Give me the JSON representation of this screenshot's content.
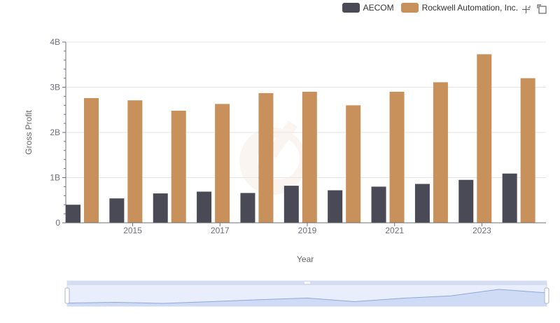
{
  "legend": {
    "aecom": "AECOM",
    "rockwell": "Rockwell Automation, Inc."
  },
  "toolbox": {
    "zoom_icon": "zoom-icon",
    "restore_icon": "restore-icon"
  },
  "colors": {
    "aecom": "#4a4a56",
    "rockwell": "#c8915c",
    "grid": "#e6e6e6",
    "axis": "#6e7079"
  },
  "chart_data": {
    "type": "bar",
    "categories": [
      "2014",
      "2015",
      "2016",
      "2017",
      "2018",
      "2019",
      "2020",
      "2021",
      "2022",
      "2023",
      "2024"
    ],
    "x_tick_labels": [
      "2015",
      "2017",
      "2019",
      "2021",
      "2023"
    ],
    "y_tick_labels": [
      "0",
      "1B",
      "2B",
      "3B",
      "4B"
    ],
    "xlabel": "Year",
    "ylabel": "Gross Profit",
    "ylim": [
      0,
      4000000000
    ],
    "grid": true,
    "legend_position": "top-right",
    "series": [
      {
        "name": "AECOM",
        "values": [
          400000000,
          540000000,
          650000000,
          690000000,
          660000000,
          820000000,
          720000000,
          800000000,
          860000000,
          950000000,
          1090000000
        ]
      },
      {
        "name": "Rockwell Automation, Inc.",
        "values": [
          2760000000,
          2710000000,
          2480000000,
          2630000000,
          2870000000,
          2900000000,
          2600000000,
          2900000000,
          3110000000,
          3730000000,
          3200000000
        ]
      }
    ],
    "slider": {
      "start": 0,
      "end": 1
    }
  }
}
